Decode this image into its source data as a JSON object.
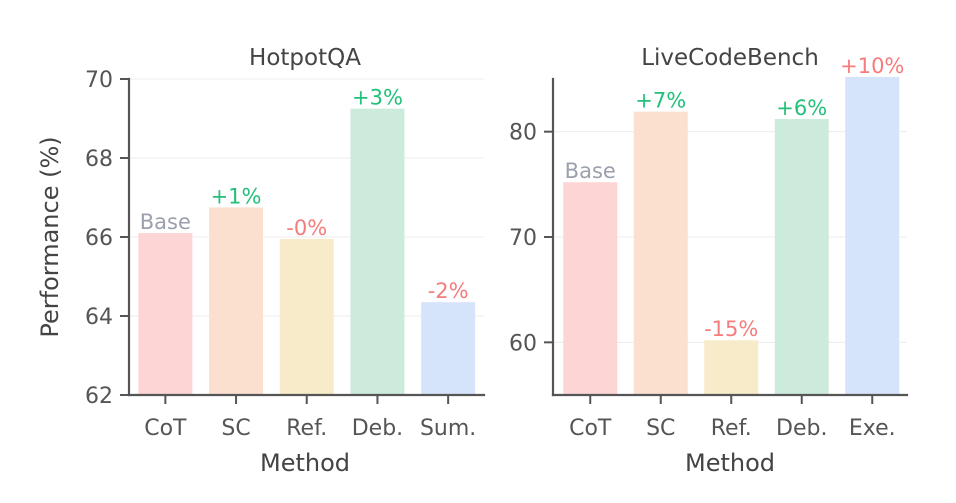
{
  "chart_data": [
    {
      "type": "bar",
      "title": "HotpotQA",
      "xlabel": "Method",
      "ylabel": "Performance (%)",
      "ylim": [
        62,
        70
      ],
      "yticks": [
        62,
        64,
        66,
        68,
        70
      ],
      "grid": true,
      "categories": [
        "CoT",
        "SC",
        "Ref.",
        "Deb.",
        "Sum."
      ],
      "values": [
        66.1,
        66.75,
        65.95,
        69.25,
        64.35
      ],
      "bar_labels": [
        "Base",
        "+1%",
        "-0%",
        "+3%",
        "-2%"
      ],
      "bar_colors": [
        "#fdd5d5",
        "#fce0cf",
        "#f8ebc9",
        "#cdebdc",
        "#d6e4fb"
      ],
      "label_colors": [
        "#9aa0ac",
        "#22c07a",
        "#f47c7c",
        "#22c07a",
        "#f47c7c"
      ]
    },
    {
      "type": "bar",
      "title": "LiveCodeBench",
      "xlabel": "Method",
      "ylabel": "",
      "ylim": [
        55,
        85
      ],
      "yticks": [
        60,
        70,
        80
      ],
      "grid": true,
      "categories": [
        "CoT",
        "SC",
        "Ref.",
        "Deb.",
        "Exe."
      ],
      "values": [
        75.2,
        81.9,
        60.2,
        81.2,
        85.2
      ],
      "bar_labels": [
        "Base",
        "+7%",
        "-15%",
        "+6%",
        "+10%"
      ],
      "bar_colors": [
        "#fdd5d5",
        "#fce0cf",
        "#f8ebc9",
        "#cdebdc",
        "#d6e4fb"
      ],
      "label_colors": [
        "#9aa0ac",
        "#22c07a",
        "#f47c7c",
        "#22c07a",
        "#f47c7c"
      ]
    }
  ]
}
